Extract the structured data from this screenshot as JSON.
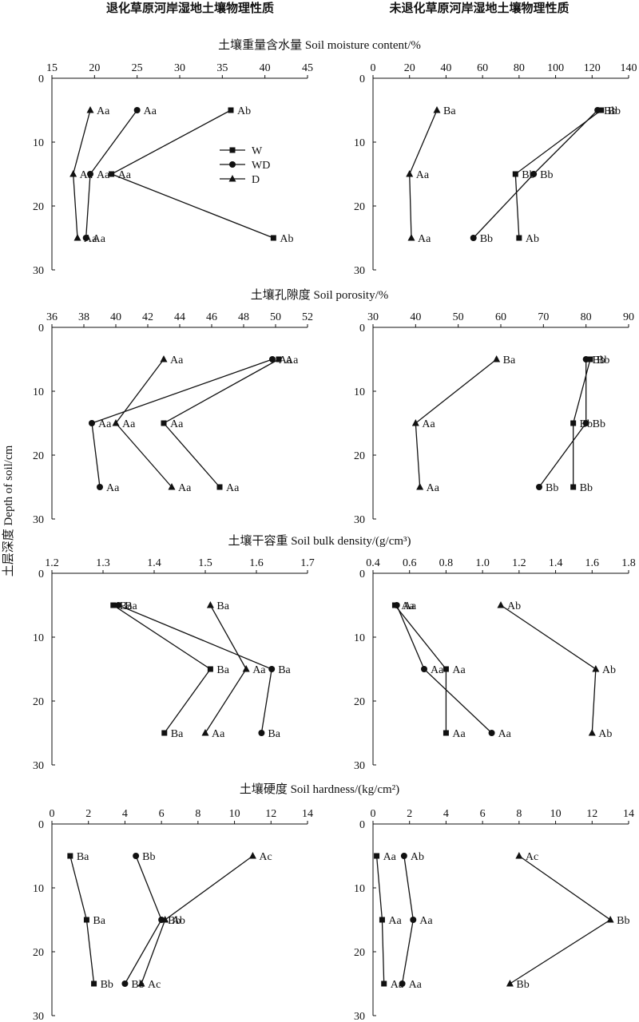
{
  "headers": {
    "left": "退化草原河岸湿地土壤物理性质",
    "right": "未退化草原河岸湿地土壤物理性质"
  },
  "ylabel": "土层深度  Depth of soil/cm",
  "legend": [
    "W",
    "WD",
    "D"
  ],
  "markers": {
    "W": "square",
    "WD": "circle",
    "D": "triangle"
  },
  "colors": {
    "line": "#111111",
    "background": "#ffffff"
  },
  "rows": [
    {
      "title": "土壤重量含水量 Soil moisture content/%"
    },
    {
      "title": "土壤孔隙度 Soil porosity/%"
    },
    {
      "title": "土壤干容重 Soil bulk density/(g/cm³)"
    },
    {
      "title": "土壤硬度 Soil hardness/(kg/cm²)"
    }
  ],
  "chart_data": [
    {
      "type": "line",
      "row": 0,
      "col": 0,
      "x_ticks": [
        "15",
        "20",
        "25",
        "30",
        "35",
        "40",
        "45"
      ],
      "xlim": [
        15,
        45
      ],
      "y_ticks": [
        "0",
        "10",
        "20",
        "30"
      ],
      "ylim": [
        0,
        30
      ],
      "show_legend": true,
      "series": [
        {
          "name": "W",
          "points": [
            [
              36.0,
              5
            ],
            [
              22.0,
              15
            ],
            [
              41.0,
              25
            ]
          ],
          "labels": [
            "Ab",
            "Aa",
            "Ab"
          ]
        },
        {
          "name": "WD",
          "points": [
            [
              25.0,
              5
            ],
            [
              19.5,
              15
            ],
            [
              19.0,
              25
            ]
          ],
          "labels": [
            "Aa",
            "Aa",
            "Aa"
          ]
        },
        {
          "name": "D",
          "points": [
            [
              19.5,
              5
            ],
            [
              17.5,
              15
            ],
            [
              18.0,
              25
            ]
          ],
          "labels": [
            "Aa",
            "Aa",
            "Aa"
          ]
        }
      ]
    },
    {
      "type": "line",
      "row": 0,
      "col": 1,
      "x_ticks": [
        "0",
        "20",
        "40",
        "60",
        "80",
        "100",
        "120",
        "140"
      ],
      "xlim": [
        0,
        140
      ],
      "y_ticks": [
        "0",
        "10",
        "20",
        "30"
      ],
      "ylim": [
        0,
        30
      ],
      "series": [
        {
          "name": "W",
          "points": [
            [
              125,
              5
            ],
            [
              78,
              15
            ],
            [
              80,
              25
            ]
          ],
          "labels": [
            "Bb",
            "Bb",
            "Ab"
          ]
        },
        {
          "name": "WD",
          "points": [
            [
              123,
              5
            ],
            [
              88,
              15
            ],
            [
              55,
              25
            ]
          ],
          "labels": [
            "Bb",
            "Bb",
            "Bb"
          ]
        },
        {
          "name": "D",
          "points": [
            [
              35,
              5
            ],
            [
              20,
              15
            ],
            [
              21,
              25
            ]
          ],
          "labels": [
            "Ba",
            "Aa",
            "Aa"
          ]
        }
      ]
    },
    {
      "type": "line",
      "row": 1,
      "col": 0,
      "x_ticks": [
        "36",
        "38",
        "40",
        "42",
        "44",
        "46",
        "48",
        "50",
        "52"
      ],
      "xlim": [
        36,
        52
      ],
      "y_ticks": [
        "0",
        "10",
        "20",
        "30"
      ],
      "ylim": [
        0,
        30
      ],
      "series": [
        {
          "name": "W",
          "points": [
            [
              50.2,
              5
            ],
            [
              43.0,
              15
            ],
            [
              46.5,
              25
            ]
          ],
          "labels": [
            "Aa",
            "Aa",
            "Aa"
          ]
        },
        {
          "name": "WD",
          "points": [
            [
              49.8,
              5
            ],
            [
              38.5,
              15
            ],
            [
              39.0,
              25
            ]
          ],
          "labels": [
            "Aa",
            "Aa",
            "Aa"
          ]
        },
        {
          "name": "D",
          "points": [
            [
              43.0,
              5
            ],
            [
              40.0,
              15
            ],
            [
              43.5,
              25
            ]
          ],
          "labels": [
            "Aa",
            "Aa",
            "Aa"
          ]
        }
      ]
    },
    {
      "type": "line",
      "row": 1,
      "col": 1,
      "x_ticks": [
        "30",
        "40",
        "50",
        "60",
        "70",
        "80",
        "90"
      ],
      "xlim": [
        30,
        90
      ],
      "y_ticks": [
        "0",
        "10",
        "20",
        "30"
      ],
      "ylim": [
        0,
        30
      ],
      "series": [
        {
          "name": "W",
          "points": [
            [
              81,
              5
            ],
            [
              77,
              15
            ],
            [
              77,
              25
            ]
          ],
          "labels": [
            "Bb",
            "Bb",
            "Bb"
          ]
        },
        {
          "name": "WD",
          "points": [
            [
              80,
              5
            ],
            [
              80,
              15
            ],
            [
              69,
              25
            ]
          ],
          "labels": [
            "Bb",
            "Bb",
            "Bb"
          ]
        },
        {
          "name": "D",
          "points": [
            [
              59,
              5
            ],
            [
              40,
              15
            ],
            [
              41,
              25
            ]
          ],
          "labels": [
            "Ba",
            "Aa",
            "Aa"
          ]
        }
      ]
    },
    {
      "type": "line",
      "row": 2,
      "col": 0,
      "x_ticks": [
        "1.2",
        "1.3",
        "1.4",
        "1.5",
        "1.6",
        "1.7"
      ],
      "xlim": [
        1.2,
        1.7
      ],
      "y_ticks": [
        "0",
        "10",
        "20",
        "30"
      ],
      "ylim": [
        0,
        30
      ],
      "series": [
        {
          "name": "W",
          "points": [
            [
              1.32,
              5
            ],
            [
              1.51,
              15
            ],
            [
              1.42,
              25
            ]
          ],
          "labels": [
            "Ba",
            "Ba",
            "Ba"
          ]
        },
        {
          "name": "WD",
          "points": [
            [
              1.33,
              5
            ],
            [
              1.63,
              15
            ],
            [
              1.61,
              25
            ]
          ],
          "labels": [
            "Ba",
            "Ba",
            "Ba"
          ]
        },
        {
          "name": "D",
          "points": [
            [
              1.51,
              5
            ],
            [
              1.58,
              15
            ],
            [
              1.5,
              25
            ]
          ],
          "labels": [
            "Ba",
            "Aa",
            "Aa"
          ]
        }
      ]
    },
    {
      "type": "line",
      "row": 2,
      "col": 1,
      "x_ticks": [
        "0.4",
        "0.6",
        "0.8",
        "1.0",
        "1.2",
        "1.4",
        "1.6",
        "1.8"
      ],
      "xlim": [
        0.4,
        1.8
      ],
      "y_ticks": [
        "0",
        "10",
        "20",
        "30"
      ],
      "ylim": [
        0,
        30
      ],
      "series": [
        {
          "name": "W",
          "points": [
            [
              0.52,
              5
            ],
            [
              0.8,
              15
            ],
            [
              0.8,
              25
            ]
          ],
          "labels": [
            "Aa",
            "Aa",
            "Aa"
          ]
        },
        {
          "name": "WD",
          "points": [
            [
              0.53,
              5
            ],
            [
              0.68,
              15
            ],
            [
              1.05,
              25
            ]
          ],
          "labels": [
            "Aa",
            "Aa",
            "Aa"
          ]
        },
        {
          "name": "D",
          "points": [
            [
              1.1,
              5
            ],
            [
              1.62,
              15
            ],
            [
              1.6,
              25
            ]
          ],
          "labels": [
            "Ab",
            "Ab",
            "Ab"
          ]
        }
      ]
    },
    {
      "type": "line",
      "row": 3,
      "col": 0,
      "x_ticks": [
        "0",
        "2",
        "4",
        "6",
        "8",
        "10",
        "12",
        "14"
      ],
      "xlim": [
        0,
        14
      ],
      "y_ticks": [
        "0",
        "10",
        "20",
        "30"
      ],
      "ylim": [
        0,
        30
      ],
      "series": [
        {
          "name": "W",
          "points": [
            [
              1.0,
              5
            ],
            [
              1.9,
              15
            ],
            [
              2.3,
              25
            ]
          ],
          "labels": [
            "Ba",
            "Ba",
            "Bb"
          ]
        },
        {
          "name": "WD",
          "points": [
            [
              4.6,
              5
            ],
            [
              6.0,
              15
            ],
            [
              4.0,
              25
            ]
          ],
          "labels": [
            "Bb",
            "Bb",
            "Bb"
          ]
        },
        {
          "name": "D",
          "points": [
            [
              11.0,
              5
            ],
            [
              6.2,
              15
            ],
            [
              4.9,
              25
            ]
          ],
          "labels": [
            "Ac",
            "Ab",
            "Ac"
          ]
        }
      ]
    },
    {
      "type": "line",
      "row": 3,
      "col": 1,
      "x_ticks": [
        "0",
        "2",
        "4",
        "6",
        "8",
        "10",
        "12",
        "14"
      ],
      "xlim": [
        0,
        14
      ],
      "y_ticks": [
        "0",
        "10",
        "20",
        "30"
      ],
      "ylim": [
        0,
        30
      ],
      "series": [
        {
          "name": "W",
          "points": [
            [
              0.2,
              5
            ],
            [
              0.5,
              15
            ],
            [
              0.6,
              25
            ]
          ],
          "labels": [
            "Aa",
            "Aa",
            "Aa"
          ]
        },
        {
          "name": "WD",
          "points": [
            [
              1.7,
              5
            ],
            [
              2.2,
              15
            ],
            [
              1.6,
              25
            ]
          ],
          "labels": [
            "Ab",
            "Aa",
            "Aa"
          ]
        },
        {
          "name": "D",
          "points": [
            [
              8.0,
              5
            ],
            [
              13.0,
              15
            ],
            [
              7.5,
              25
            ]
          ],
          "labels": [
            "Ac",
            "Bb",
            "Bb"
          ]
        }
      ]
    }
  ]
}
